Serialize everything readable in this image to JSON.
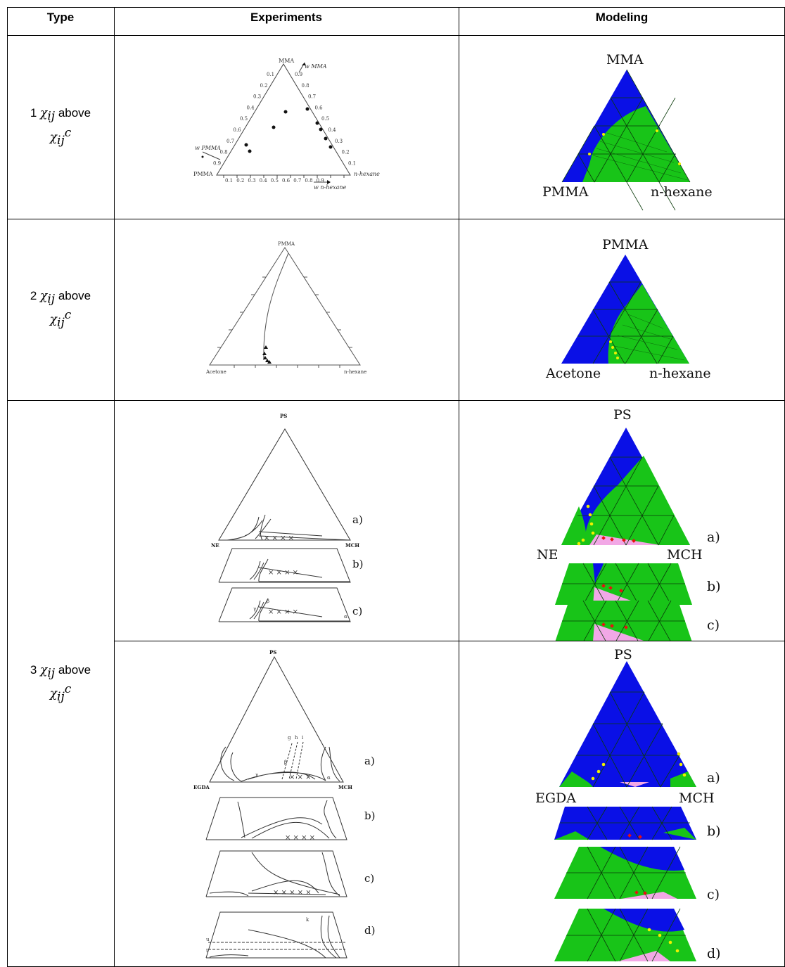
{
  "table": {
    "headers": [
      "Type",
      "Experiments",
      "Modeling"
    ],
    "rows": [
      {
        "type": {
          "n": "1",
          "chi": "χ",
          "sub": "ij",
          "word": "above",
          "sup": "c"
        }
      },
      {
        "type": {
          "n": "2",
          "chi": "χ",
          "sub": "ij",
          "word": "above",
          "sup": "c"
        }
      },
      {
        "type": {
          "n": "3",
          "chi": "χ",
          "sub": "ij",
          "word": "above",
          "sup": "c"
        }
      }
    ]
  },
  "experiments": {
    "row1": {
      "top": "MMA",
      "left": "PMMA",
      "right": "n-hexane",
      "w_mma": "w MMA",
      "w_pmma": "w PMMA",
      "w_hex": "w n-hexane",
      "left_ticks": [
        "0.1",
        "0.2",
        "0.3",
        "0.4",
        "0.5",
        "0.6",
        "0.7",
        "0.8",
        "0.9"
      ],
      "right_ticks": [
        "0.9",
        "0.8",
        "0.7",
        "0.6",
        "0.5",
        "0.4",
        "0.3",
        "0.2",
        "0.1"
      ],
      "bottom_ticks": [
        "0.1",
        "0.2",
        "0.3",
        "0.4",
        "0.5",
        "0.6",
        "0.7",
        "0.8",
        "0.9"
      ]
    },
    "row2": {
      "top": "PMMA",
      "left": "Acetone",
      "right": "n-hexane"
    },
    "row3a": {
      "top": "PS",
      "left": "NE",
      "right": "MCH",
      "labels": [
        "a)",
        "b)",
        "c)"
      ],
      "greek": [
        "γ",
        "β",
        "α"
      ]
    },
    "row3b": {
      "top": "PS",
      "left": "EGDA",
      "right": "MCH",
      "labels": [
        "a)",
        "b)",
        "c)",
        "d)"
      ],
      "greek": [
        "γ",
        "β",
        "α"
      ],
      "lines": [
        "g",
        "h",
        "i"
      ],
      "k": "k",
      "u": "u",
      "t": "t"
    }
  },
  "modeling": {
    "row1": {
      "top": "MMA",
      "left": "PMMA",
      "right": "n-hexane"
    },
    "row2": {
      "top": "PMMA",
      "left": "Acetone",
      "right": "n-hexane"
    },
    "row3a": {
      "top": "PS",
      "left": "NE",
      "right": "MCH",
      "labels": [
        "a)",
        "b)",
        "c)"
      ]
    },
    "row3b": {
      "top": "PS",
      "left": "EGDA",
      "right": "MCH",
      "labels": [
        "a)",
        "b)",
        "c)",
        "d)"
      ]
    }
  },
  "colors": {
    "blue": "#0a10e6",
    "green": "#18c418",
    "pink": "#f2a8e6",
    "yellow": "#f0f000",
    "red": "#e81010"
  }
}
